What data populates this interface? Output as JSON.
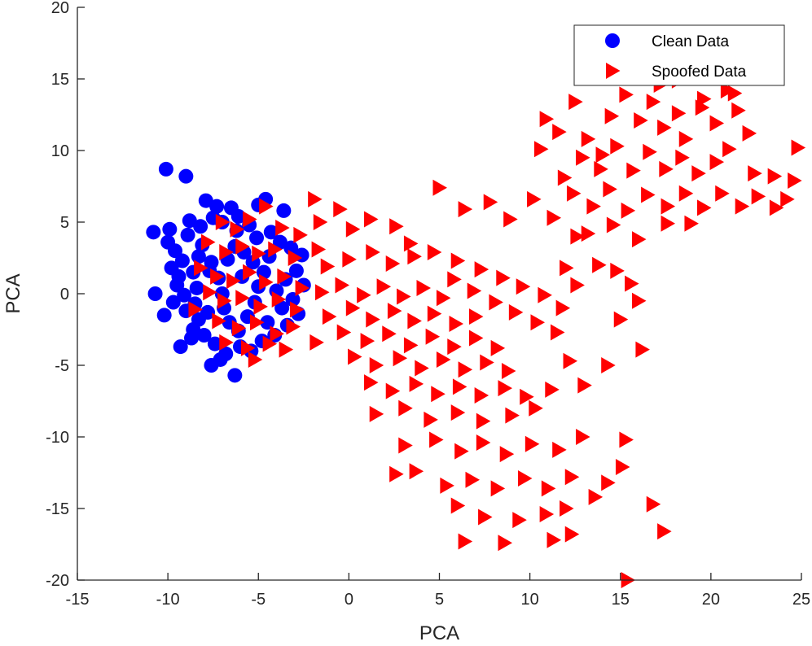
{
  "chart_data": {
    "type": "scatter",
    "title": "",
    "xlabel": "PCA",
    "ylabel": "PCA",
    "xlim": [
      -15,
      25
    ],
    "ylim": [
      -20,
      20
    ],
    "xticks": [
      -15,
      -10,
      -5,
      0,
      5,
      10,
      15,
      20,
      25
    ],
    "yticks": [
      -20,
      -15,
      -10,
      -5,
      0,
      5,
      10,
      15,
      20
    ],
    "grid": false,
    "legend": {
      "placement": "top-right"
    },
    "series": [
      {
        "name": "Clean Data",
        "marker": "circle",
        "color": "#0000ff",
        "points": [
          [
            -10.1,
            8.7
          ],
          [
            -9.0,
            8.2
          ],
          [
            -10.8,
            4.3
          ],
          [
            -10.7,
            0.0
          ],
          [
            -10.2,
            -1.5
          ],
          [
            -9.3,
            -3.7
          ],
          [
            -7.6,
            -5.0
          ],
          [
            -6.3,
            -5.7
          ],
          [
            -7.9,
            6.5
          ],
          [
            -7.3,
            6.1
          ],
          [
            -6.5,
            6.0
          ],
          [
            -6.1,
            5.4
          ],
          [
            -5.0,
            6.2
          ],
          [
            -4.6,
            6.6
          ],
          [
            -3.6,
            5.8
          ],
          [
            -8.8,
            5.1
          ],
          [
            -9.9,
            4.5
          ],
          [
            -10.0,
            3.6
          ],
          [
            -9.6,
            3.0
          ],
          [
            -9.8,
            1.8
          ],
          [
            -9.5,
            0.6
          ],
          [
            -9.7,
            -0.6
          ],
          [
            -9.0,
            -1.2
          ],
          [
            -8.6,
            -2.5
          ],
          [
            -8.9,
            4.1
          ],
          [
            -8.2,
            4.7
          ],
          [
            -7.5,
            5.3
          ],
          [
            -7.0,
            5.0
          ],
          [
            -6.2,
            4.4
          ],
          [
            -5.5,
            4.8
          ],
          [
            -5.1,
            3.9
          ],
          [
            -4.3,
            4.3
          ],
          [
            -3.8,
            3.6
          ],
          [
            -3.2,
            3.2
          ],
          [
            -2.6,
            2.7
          ],
          [
            -2.9,
            1.6
          ],
          [
            -2.5,
            0.6
          ],
          [
            -3.1,
            -0.4
          ],
          [
            -2.8,
            -1.4
          ],
          [
            -3.4,
            -2.2
          ],
          [
            -4.1,
            -2.9
          ],
          [
            -4.8,
            -3.3
          ],
          [
            -5.4,
            -4.0
          ],
          [
            -6.0,
            -3.7
          ],
          [
            -6.8,
            -4.2
          ],
          [
            -7.4,
            -3.5
          ],
          [
            -8.0,
            -2.9
          ],
          [
            -8.3,
            -1.8
          ],
          [
            -8.5,
            -0.7
          ],
          [
            -8.4,
            0.4
          ],
          [
            -8.6,
            1.5
          ],
          [
            -8.3,
            2.6
          ],
          [
            -8.1,
            3.4
          ],
          [
            -7.6,
            2.2
          ],
          [
            -7.2,
            1.1
          ],
          [
            -7.0,
            0.0
          ],
          [
            -6.9,
            -1.0
          ],
          [
            -6.6,
            -2.0
          ],
          [
            -6.1,
            -2.6
          ],
          [
            -5.6,
            -1.6
          ],
          [
            -5.2,
            -0.6
          ],
          [
            -5.0,
            0.5
          ],
          [
            -4.7,
            1.5
          ],
          [
            -4.4,
            2.6
          ],
          [
            -5.8,
            2.9
          ],
          [
            -6.3,
            3.3
          ],
          [
            -6.7,
            2.4
          ],
          [
            -4.0,
            0.2
          ],
          [
            -3.7,
            -1.0
          ],
          [
            -4.5,
            -2.0
          ],
          [
            -9.2,
            2.3
          ],
          [
            -9.1,
            -0.1
          ],
          [
            -7.8,
            -1.3
          ],
          [
            -7.7,
            1.6
          ],
          [
            -5.9,
            1.2
          ],
          [
            -5.3,
            2.2
          ],
          [
            -3.5,
            1.0
          ],
          [
            -9.4,
            1.2
          ],
          [
            -8.7,
            -3.1
          ],
          [
            -7.1,
            -4.6
          ]
        ]
      },
      {
        "name": "Spoofed Data",
        "marker": "triangle-right",
        "color": "#ff0000",
        "points": [
          [
            -7.0,
            5.0
          ],
          [
            -6.2,
            4.5
          ],
          [
            -5.5,
            5.2
          ],
          [
            -4.6,
            6.1
          ],
          [
            -3.7,
            4.6
          ],
          [
            -7.8,
            3.6
          ],
          [
            -6.8,
            2.9
          ],
          [
            -5.9,
            3.3
          ],
          [
            -5.0,
            2.8
          ],
          [
            -4.1,
            3.1
          ],
          [
            -3.0,
            2.5
          ],
          [
            -8.2,
            1.8
          ],
          [
            -7.3,
            1.2
          ],
          [
            -6.4,
            0.9
          ],
          [
            -5.5,
            1.5
          ],
          [
            -4.6,
            0.8
          ],
          [
            -3.6,
            1.2
          ],
          [
            -2.6,
            0.4
          ],
          [
            -7.7,
            0.1
          ],
          [
            -6.9,
            -0.5
          ],
          [
            -5.9,
            -0.3
          ],
          [
            -4.9,
            -0.9
          ],
          [
            -3.9,
            -0.4
          ],
          [
            -2.9,
            -1.1
          ],
          [
            -8.5,
            -1.1
          ],
          [
            -7.2,
            -1.9
          ],
          [
            -6.1,
            -2.4
          ],
          [
            -5.1,
            -2.0
          ],
          [
            -4.0,
            -2.8
          ],
          [
            -3.1,
            -2.3
          ],
          [
            -6.8,
            -3.4
          ],
          [
            -5.6,
            -3.8
          ],
          [
            -4.4,
            -3.5
          ],
          [
            -3.5,
            -3.9
          ],
          [
            -5.2,
            -4.6
          ],
          [
            -2.7,
            4.1
          ],
          [
            -1.6,
            5.0
          ],
          [
            -1.7,
            3.1
          ],
          [
            -1.9,
            6.6
          ],
          [
            -0.5,
            5.9
          ],
          [
            0.2,
            4.5
          ],
          [
            1.2,
            5.2
          ],
          [
            2.6,
            4.7
          ],
          [
            -1.2,
            1.9
          ],
          [
            0.0,
            2.4
          ],
          [
            1.3,
            2.9
          ],
          [
            2.4,
            2.1
          ],
          [
            3.6,
            2.6
          ],
          [
            -1.5,
            0.1
          ],
          [
            -0.4,
            0.6
          ],
          [
            0.8,
            -0.1
          ],
          [
            1.9,
            0.5
          ],
          [
            3.0,
            -0.2
          ],
          [
            4.1,
            0.4
          ],
          [
            5.2,
            -0.3
          ],
          [
            -1.1,
            -1.6
          ],
          [
            0.2,
            -1.0
          ],
          [
            1.3,
            -1.8
          ],
          [
            2.5,
            -1.2
          ],
          [
            3.6,
            -1.9
          ],
          [
            4.7,
            -1.4
          ],
          [
            5.9,
            -2.1
          ],
          [
            7.0,
            -1.6
          ],
          [
            -1.8,
            -3.4
          ],
          [
            -0.3,
            -2.7
          ],
          [
            1.0,
            -3.3
          ],
          [
            2.2,
            -2.8
          ],
          [
            3.4,
            -3.6
          ],
          [
            4.6,
            -3.0
          ],
          [
            5.8,
            -3.7
          ],
          [
            7.0,
            -3.1
          ],
          [
            8.2,
            -3.8
          ],
          [
            0.3,
            -4.4
          ],
          [
            1.5,
            -5.0
          ],
          [
            2.8,
            -4.5
          ],
          [
            4.0,
            -5.2
          ],
          [
            5.2,
            -4.6
          ],
          [
            6.4,
            -5.3
          ],
          [
            7.6,
            -4.8
          ],
          [
            8.8,
            -5.4
          ],
          [
            1.2,
            -6.2
          ],
          [
            2.4,
            -6.8
          ],
          [
            3.7,
            -6.3
          ],
          [
            4.9,
            -7.0
          ],
          [
            6.1,
            -6.5
          ],
          [
            7.3,
            -7.1
          ],
          [
            8.6,
            -6.6
          ],
          [
            9.8,
            -7.2
          ],
          [
            1.5,
            -8.4
          ],
          [
            3.1,
            -8.0
          ],
          [
            4.5,
            -8.8
          ],
          [
            6.0,
            -8.3
          ],
          [
            7.4,
            -8.9
          ],
          [
            9.0,
            -8.5
          ],
          [
            10.3,
            -8.0
          ],
          [
            11.2,
            -6.7
          ],
          [
            3.4,
            3.5
          ],
          [
            4.7,
            2.9
          ],
          [
            6.0,
            2.3
          ],
          [
            7.3,
            1.7
          ],
          [
            8.5,
            1.1
          ],
          [
            9.6,
            0.5
          ],
          [
            10.8,
            -0.1
          ],
          [
            11.8,
            -1.0
          ],
          [
            5.8,
            1.0
          ],
          [
            6.9,
            0.2
          ],
          [
            8.1,
            -0.6
          ],
          [
            9.2,
            -1.3
          ],
          [
            10.4,
            -2.0
          ],
          [
            11.5,
            -2.7
          ],
          [
            12.6,
            0.6
          ],
          [
            12.0,
            1.8
          ],
          [
            5.0,
            7.4
          ],
          [
            6.4,
            5.9
          ],
          [
            7.8,
            6.4
          ],
          [
            8.9,
            5.2
          ],
          [
            10.2,
            6.6
          ],
          [
            11.3,
            5.3
          ],
          [
            12.6,
            4.0
          ],
          [
            13.8,
            2.0
          ],
          [
            14.8,
            1.6
          ],
          [
            15.6,
            0.7
          ],
          [
            16.0,
            -0.5
          ],
          [
            15.0,
            -1.8
          ],
          [
            16.2,
            -3.9
          ],
          [
            14.3,
            -5.0
          ],
          [
            13.0,
            -6.4
          ],
          [
            12.2,
            -4.7
          ],
          [
            3.1,
            -10.6
          ],
          [
            4.8,
            -10.2
          ],
          [
            6.2,
            -11.0
          ],
          [
            7.4,
            -10.4
          ],
          [
            8.7,
            -11.2
          ],
          [
            10.1,
            -10.5
          ],
          [
            11.6,
            -10.9
          ],
          [
            12.9,
            -10.0
          ],
          [
            2.6,
            -12.6
          ],
          [
            3.7,
            -12.4
          ],
          [
            5.4,
            -13.4
          ],
          [
            6.8,
            -13.0
          ],
          [
            8.2,
            -13.6
          ],
          [
            9.7,
            -12.9
          ],
          [
            11.0,
            -13.6
          ],
          [
            12.3,
            -12.8
          ],
          [
            6.0,
            -14.8
          ],
          [
            7.5,
            -15.6
          ],
          [
            9.4,
            -15.8
          ],
          [
            10.9,
            -15.4
          ],
          [
            12.0,
            -15.0
          ],
          [
            13.6,
            -14.2
          ],
          [
            14.3,
            -13.2
          ],
          [
            15.1,
            -12.1
          ],
          [
            6.4,
            -17.3
          ],
          [
            8.6,
            -17.4
          ],
          [
            11.3,
            -17.2
          ],
          [
            12.3,
            -16.8
          ],
          [
            15.3,
            -10.2
          ],
          [
            16.8,
            -14.7
          ],
          [
            17.4,
            -16.6
          ],
          [
            15.4,
            -20.0
          ],
          [
            11.6,
            11.3
          ],
          [
            12.5,
            13.4
          ],
          [
            13.2,
            10.8
          ],
          [
            14.0,
            9.7
          ],
          [
            14.5,
            12.4
          ],
          [
            15.3,
            13.9
          ],
          [
            16.1,
            12.1
          ],
          [
            16.8,
            13.4
          ],
          [
            17.4,
            11.6
          ],
          [
            18.2,
            12.6
          ],
          [
            18.6,
            10.8
          ],
          [
            19.5,
            13.0
          ],
          [
            20.3,
            11.9
          ],
          [
            20.9,
            14.2
          ],
          [
            21.5,
            12.8
          ],
          [
            22.1,
            11.2
          ],
          [
            12.9,
            9.5
          ],
          [
            13.9,
            8.7
          ],
          [
            14.8,
            10.3
          ],
          [
            15.7,
            8.6
          ],
          [
            16.6,
            9.9
          ],
          [
            17.5,
            8.7
          ],
          [
            18.4,
            9.5
          ],
          [
            19.3,
            8.4
          ],
          [
            20.3,
            9.2
          ],
          [
            21.0,
            10.1
          ],
          [
            22.4,
            8.4
          ],
          [
            23.5,
            8.2
          ],
          [
            24.6,
            7.9
          ],
          [
            24.8,
            10.2
          ],
          [
            12.4,
            7.0
          ],
          [
            13.5,
            6.1
          ],
          [
            14.4,
            7.3
          ],
          [
            15.4,
            5.8
          ],
          [
            16.5,
            6.9
          ],
          [
            17.6,
            6.1
          ],
          [
            18.6,
            7.0
          ],
          [
            19.6,
            6.0
          ],
          [
            20.6,
            7.0
          ],
          [
            21.7,
            6.1
          ],
          [
            22.6,
            6.8
          ],
          [
            23.6,
            6.0
          ],
          [
            24.2,
            6.6
          ],
          [
            13.2,
            4.2
          ],
          [
            14.6,
            4.8
          ],
          [
            16.0,
            3.8
          ],
          [
            17.6,
            4.9
          ],
          [
            18.9,
            4.9
          ],
          [
            15.7,
            15.1
          ],
          [
            17.2,
            14.6
          ],
          [
            18.2,
            14.9
          ],
          [
            19.6,
            13.6
          ],
          [
            21.3,
            14.0
          ],
          [
            10.6,
            10.1
          ],
          [
            11.9,
            8.1
          ],
          [
            10.9,
            12.2
          ]
        ]
      }
    ]
  }
}
